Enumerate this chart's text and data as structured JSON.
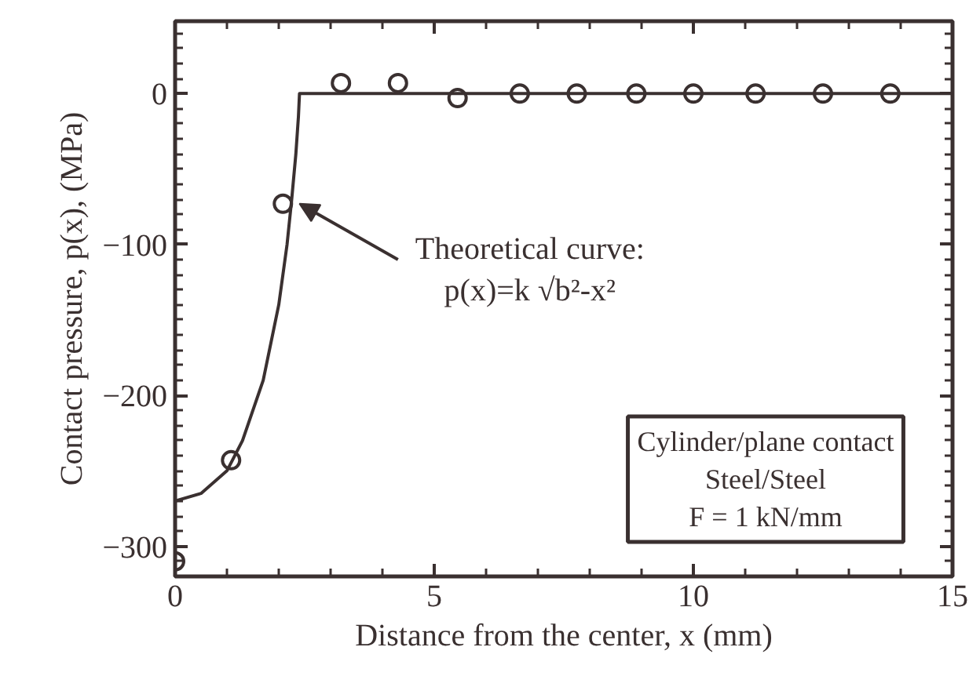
{
  "chart_data": {
    "type": "scatter",
    "xlabel": "Distance from the center, x (mm)",
    "ylabel": "Contact pressure, p(x), (MPa)",
    "series": [
      {
        "type": "line",
        "color": "#3a3030",
        "x": [
          0,
          0.5,
          1.0,
          1.3,
          1.7,
          2.0,
          2.16,
          2.25,
          2.33,
          2.38,
          2.4,
          15
        ],
        "values": [
          -270,
          -265,
          -250,
          -230,
          -190,
          -140,
          -100,
          -70,
          -40,
          -15,
          0,
          0
        ]
      },
      {
        "type": "scatter",
        "color": "#3a3030",
        "marker": "circle",
        "x": [
          0,
          1.08,
          2.08,
          3.2,
          4.3,
          5.45,
          6.65,
          7.75,
          8.9,
          10.0,
          11.2,
          12.5,
          13.8
        ],
        "values": [
          -310,
          -243,
          -73,
          7,
          7,
          -3,
          0,
          0,
          0,
          0,
          0,
          0,
          0
        ]
      }
    ],
    "xlim": [
      0,
      15
    ],
    "ylim": [
      -320,
      48
    ],
    "xticks": [
      0,
      5,
      10,
      15
    ],
    "yticks": [
      0,
      {
        "value": -100,
        "label": "−100"
      },
      {
        "value": -200,
        "label": "−200"
      },
      {
        "value": -300,
        "label": "−300"
      }
    ],
    "grid": false,
    "annotations": [
      {
        "text": "Theoretical curve:\np(x)=k √b²-x²",
        "x": 2.3,
        "y": -73
      },
      "Cylinder/plane contact\nSteel/Steel\nF = 1 kN/mm"
    ]
  }
}
